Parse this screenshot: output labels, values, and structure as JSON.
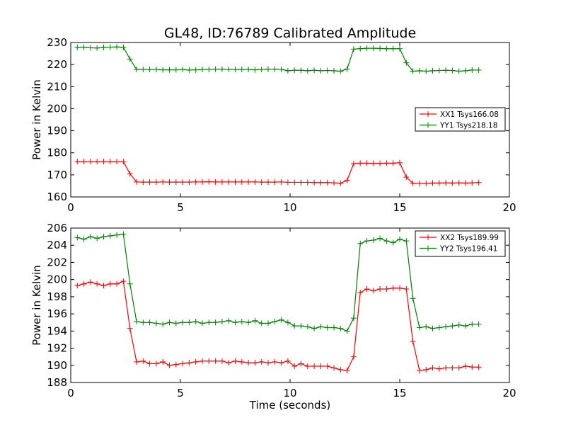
{
  "title": "GL48, ID:76789 Calibrated Amplitude",
  "colors": {
    "xx": "#ff0000",
    "yy": "#008000"
  },
  "chart_data": [
    {
      "type": "line",
      "xlabel": "",
      "ylabel": "Power in Kelvin",
      "xlim": [
        0,
        20
      ],
      "ylim": [
        160,
        230
      ],
      "xticks": [
        "0",
        "5",
        "10",
        "15",
        "20"
      ],
      "yticks": [
        "160",
        "170",
        "180",
        "190",
        "200",
        "210",
        "220",
        "230"
      ],
      "legend_position": "right",
      "x": [
        0.3,
        0.6,
        0.9,
        1.2,
        1.5,
        1.8,
        2.1,
        2.4,
        2.7,
        3.0,
        3.3,
        3.6,
        3.9,
        4.2,
        4.5,
        4.8,
        5.1,
        5.4,
        5.7,
        6.0,
        6.3,
        6.6,
        6.9,
        7.2,
        7.5,
        7.8,
        8.1,
        8.4,
        8.7,
        9.0,
        9.3,
        9.6,
        9.9,
        10.2,
        10.5,
        10.8,
        11.1,
        11.4,
        11.7,
        12.0,
        12.3,
        12.6,
        12.9,
        13.2,
        13.5,
        13.8,
        14.1,
        14.4,
        14.7,
        15.0,
        15.3,
        15.6,
        15.9,
        16.2,
        16.5,
        16.8,
        17.1,
        17.4,
        17.7,
        18.0,
        18.3,
        18.6
      ],
      "series": [
        {
          "name": "XX1 Tsys166.08",
          "color": "#ff0000",
          "values": [
            176,
            176,
            176,
            176,
            176,
            176,
            176,
            176,
            170.5,
            166.8,
            166.7,
            166.7,
            166.7,
            166.8,
            166.7,
            166.7,
            166.7,
            166.7,
            166.8,
            166.8,
            166.9,
            166.8,
            166.8,
            166.8,
            166.8,
            166.8,
            166.8,
            166.8,
            166.7,
            166.7,
            166.7,
            166.8,
            166.6,
            166.6,
            166.6,
            166.6,
            166.5,
            166.5,
            166.5,
            166.4,
            166.2,
            167.5,
            175.1,
            175.3,
            175.3,
            175.2,
            175.2,
            175.3,
            175.3,
            175.5,
            169,
            166.2,
            166.1,
            166.1,
            166.3,
            166.3,
            166.4,
            166.3,
            166.4,
            166.3,
            166.4,
            166.5
          ]
        },
        {
          "name": "YY1 Tsys218.18",
          "color": "#008000",
          "values": [
            227.8,
            227.8,
            227.6,
            227.5,
            227.8,
            227.9,
            228,
            227.8,
            222.5,
            217.8,
            217.8,
            217.8,
            217.8,
            217.6,
            217.6,
            217.6,
            217.8,
            217.5,
            217.6,
            217.8,
            217.8,
            217.9,
            217.9,
            217.8,
            217.8,
            217.8,
            217.8,
            217.6,
            217.8,
            217.9,
            217.9,
            217.8,
            217.2,
            217.4,
            217.4,
            217.2,
            217.4,
            217.2,
            217.3,
            217.2,
            217,
            218,
            227,
            227.2,
            227.4,
            227.4,
            227.3,
            227.2,
            227.2,
            227.2,
            220.8,
            217,
            217.2,
            217,
            217.2,
            217.3,
            217.4,
            217.3,
            217,
            217.2,
            217.5,
            217.5
          ]
        }
      ]
    },
    {
      "type": "line",
      "xlabel": "Time (seconds)",
      "ylabel": "Power in Kelvin",
      "xlim": [
        0,
        20
      ],
      "ylim": [
        188,
        206
      ],
      "xticks": [
        "0",
        "5",
        "10",
        "15",
        "20"
      ],
      "yticks": [
        "188",
        "190",
        "192",
        "194",
        "196",
        "198",
        "200",
        "202",
        "204",
        "206"
      ],
      "legend_position": "top-right",
      "x": [
        0.3,
        0.6,
        0.9,
        1.2,
        1.5,
        1.8,
        2.1,
        2.4,
        2.7,
        3.0,
        3.3,
        3.6,
        3.9,
        4.2,
        4.5,
        4.8,
        5.1,
        5.4,
        5.7,
        6.0,
        6.3,
        6.6,
        6.9,
        7.2,
        7.5,
        7.8,
        8.1,
        8.4,
        8.7,
        9.0,
        9.3,
        9.6,
        9.9,
        10.2,
        10.5,
        10.8,
        11.1,
        11.4,
        11.7,
        12.0,
        12.3,
        12.6,
        12.9,
        13.2,
        13.5,
        13.8,
        14.1,
        14.4,
        14.7,
        15.0,
        15.3,
        15.6,
        15.9,
        16.2,
        16.5,
        16.8,
        17.1,
        17.4,
        17.7,
        18.0,
        18.3,
        18.6
      ],
      "series": [
        {
          "name": "XX2 Tsys189.99",
          "color": "#ff0000",
          "values": [
            199.3,
            199.5,
            199.7,
            199.5,
            199.3,
            199.5,
            199.5,
            199.8,
            194.3,
            190.4,
            190.5,
            190.2,
            190.2,
            190.4,
            190.0,
            190.1,
            190.2,
            190.3,
            190.4,
            190.5,
            190.5,
            190.5,
            190.5,
            190.3,
            190.5,
            190.4,
            190.3,
            190.3,
            190.4,
            190.3,
            190.4,
            190.3,
            190.5,
            189.9,
            190.2,
            189.9,
            189.9,
            189.9,
            189.9,
            189.7,
            189.5,
            189.4,
            191,
            198.5,
            198.9,
            198.7,
            198.9,
            198.9,
            199.0,
            199.0,
            198.9,
            192.8,
            189.4,
            189.5,
            189.7,
            189.6,
            189.7,
            189.7,
            189.7,
            189.9,
            189.8,
            189.8
          ]
        },
        {
          "name": "YY2 Tsys196.41",
          "color": "#008000",
          "values": [
            204.9,
            204.7,
            205.0,
            204.8,
            205.0,
            205.1,
            205.2,
            205.3,
            199.5,
            195.1,
            195.0,
            195.0,
            194.9,
            194.8,
            195.0,
            194.9,
            195.0,
            195.0,
            195.1,
            194.9,
            195.0,
            195.0,
            195.1,
            195.2,
            195.0,
            195.1,
            195.0,
            195.2,
            194.9,
            194.9,
            195.1,
            195.3,
            195.0,
            194.6,
            194.6,
            194.5,
            194.3,
            194.5,
            194.4,
            194.4,
            194.3,
            194.0,
            195.5,
            204.2,
            204.5,
            204.6,
            204.8,
            204.5,
            204.3,
            204.7,
            204.5,
            197.8,
            194.4,
            194.5,
            194.3,
            194.4,
            194.5,
            194.6,
            194.7,
            194.6,
            194.8,
            194.8
          ]
        }
      ]
    }
  ]
}
